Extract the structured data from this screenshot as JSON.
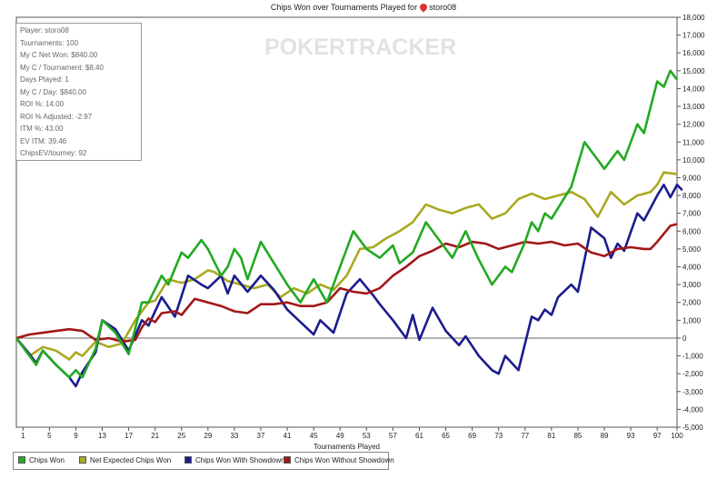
{
  "chart_data": {
    "type": "line",
    "title": "Chips Won over Tournaments Played for",
    "player_name": "storo08",
    "watermark": "POKERTRACKER",
    "xlabel": "Tournaments Played",
    "ylabel": "",
    "xlim": [
      0,
      100
    ],
    "ylim": [
      -5000,
      18000
    ],
    "x_ticks": [
      1,
      5,
      9,
      13,
      17,
      21,
      25,
      29,
      33,
      37,
      41,
      45,
      49,
      53,
      57,
      61,
      65,
      69,
      73,
      77,
      81,
      85,
      89,
      93,
      97,
      100
    ],
    "y_ticks": [
      -5000,
      -4000,
      -3000,
      -2000,
      -1000,
      0,
      1000,
      2000,
      3000,
      4000,
      5000,
      6000,
      7000,
      8000,
      9000,
      10000,
      11000,
      12000,
      13000,
      14000,
      15000,
      16000,
      17000,
      18000
    ],
    "y_axis_side": "right",
    "grid": false,
    "legend_position": "bottom",
    "stats": [
      "Player: storo08",
      "Tournaments: 100",
      "My C Net Won: $840.00",
      "My C / Tournament: $8.40",
      "Days Played: 1",
      "My C / Day: $840.00",
      "ROI %: 14.00",
      "ROI % Adjusted: -2.97",
      "ITM %: 43.00",
      "EV ITM: 39.46",
      "ChipsEV/tourney: 92"
    ],
    "series": [
      {
        "name": "Chips Won",
        "color": "#22aa22",
        "points": [
          [
            0,
            0
          ],
          [
            2,
            -1000
          ],
          [
            3,
            -1500
          ],
          [
            4,
            -700
          ],
          [
            6,
            -1500
          ],
          [
            8,
            -2200
          ],
          [
            9,
            -1800
          ],
          [
            10,
            -2200
          ],
          [
            12,
            -600
          ],
          [
            13,
            1000
          ],
          [
            15,
            300
          ],
          [
            17,
            -900
          ],
          [
            19,
            2000
          ],
          [
            20,
            2000
          ],
          [
            22,
            3500
          ],
          [
            23,
            3000
          ],
          [
            25,
            4800
          ],
          [
            26,
            4500
          ],
          [
            28,
            5500
          ],
          [
            29,
            5000
          ],
          [
            31,
            3500
          ],
          [
            32,
            4000
          ],
          [
            33,
            5000
          ],
          [
            34,
            4500
          ],
          [
            35,
            3300
          ],
          [
            37,
            5400
          ],
          [
            39,
            4200
          ],
          [
            41,
            3000
          ],
          [
            43,
            2000
          ],
          [
            45,
            3300
          ],
          [
            47,
            2000
          ],
          [
            49,
            4000
          ],
          [
            51,
            6000
          ],
          [
            53,
            5000
          ],
          [
            55,
            4500
          ],
          [
            57,
            5200
          ],
          [
            58,
            4200
          ],
          [
            60,
            4800
          ],
          [
            62,
            6500
          ],
          [
            64,
            5500
          ],
          [
            66,
            4500
          ],
          [
            68,
            6000
          ],
          [
            70,
            4400
          ],
          [
            72,
            3000
          ],
          [
            74,
            4000
          ],
          [
            75,
            3700
          ],
          [
            77,
            5400
          ],
          [
            78,
            6500
          ],
          [
            79,
            6000
          ],
          [
            80,
            7000
          ],
          [
            81,
            6700
          ],
          [
            84,
            8500
          ],
          [
            86,
            11000
          ],
          [
            88,
            10000
          ],
          [
            89,
            9500
          ],
          [
            91,
            10500
          ],
          [
            92,
            10000
          ],
          [
            94,
            12000
          ],
          [
            95,
            11500
          ],
          [
            97,
            14400
          ],
          [
            98,
            14100
          ],
          [
            99,
            15000
          ],
          [
            100,
            14500
          ]
        ]
      },
      {
        "name": "Net Expected Chips Won",
        "color": "#a9a922",
        "points": [
          [
            0,
            0
          ],
          [
            2,
            -1000
          ],
          [
            4,
            -500
          ],
          [
            6,
            -700
          ],
          [
            8,
            -1200
          ],
          [
            9,
            -800
          ],
          [
            10,
            -1000
          ],
          [
            12,
            -200
          ],
          [
            14,
            -500
          ],
          [
            16,
            -300
          ],
          [
            18,
            1000
          ],
          [
            20,
            2000
          ],
          [
            21,
            2100
          ],
          [
            23,
            3300
          ],
          [
            25,
            3100
          ],
          [
            27,
            3300
          ],
          [
            29,
            3800
          ],
          [
            30,
            3700
          ],
          [
            32,
            3200
          ],
          [
            34,
            3000
          ],
          [
            36,
            2800
          ],
          [
            38,
            3000
          ],
          [
            40,
            2300
          ],
          [
            42,
            2800
          ],
          [
            44,
            2500
          ],
          [
            46,
            3000
          ],
          [
            48,
            2700
          ],
          [
            50,
            3500
          ],
          [
            52,
            5000
          ],
          [
            54,
            5100
          ],
          [
            56,
            5600
          ],
          [
            58,
            6000
          ],
          [
            60,
            6500
          ],
          [
            62,
            7500
          ],
          [
            64,
            7200
          ],
          [
            66,
            7000
          ],
          [
            68,
            7300
          ],
          [
            70,
            7500
          ],
          [
            72,
            6700
          ],
          [
            74,
            7000
          ],
          [
            76,
            7800
          ],
          [
            78,
            8100
          ],
          [
            80,
            7800
          ],
          [
            82,
            8000
          ],
          [
            84,
            8200
          ],
          [
            86,
            7800
          ],
          [
            88,
            6800
          ],
          [
            90,
            8200
          ],
          [
            92,
            7500
          ],
          [
            94,
            8000
          ],
          [
            96,
            8200
          ],
          [
            97,
            8600
          ],
          [
            98,
            9300
          ],
          [
            100,
            9200
          ]
        ]
      },
      {
        "name": "Chips Won With Showdown",
        "color": "#1c1c8e",
        "points": [
          [
            0,
            0
          ],
          [
            2,
            -900
          ],
          [
            3,
            -1400
          ],
          [
            4,
            -700
          ],
          [
            6,
            -1500
          ],
          [
            8,
            -2200
          ],
          [
            9,
            -2700
          ],
          [
            10,
            -1900
          ],
          [
            12,
            -800
          ],
          [
            13,
            1000
          ],
          [
            15,
            500
          ],
          [
            17,
            -700
          ],
          [
            19,
            1000
          ],
          [
            20,
            700
          ],
          [
            22,
            2300
          ],
          [
            24,
            1200
          ],
          [
            26,
            3500
          ],
          [
            28,
            3000
          ],
          [
            29,
            2800
          ],
          [
            31,
            3500
          ],
          [
            32,
            2500
          ],
          [
            33,
            3500
          ],
          [
            35,
            2600
          ],
          [
            37,
            3500
          ],
          [
            39,
            2700
          ],
          [
            41,
            1600
          ],
          [
            43,
            900
          ],
          [
            45,
            200
          ],
          [
            46,
            1000
          ],
          [
            48,
            300
          ],
          [
            50,
            2500
          ],
          [
            52,
            3300
          ],
          [
            54,
            2400
          ],
          [
            55,
            1900
          ],
          [
            57,
            1000
          ],
          [
            59,
            0
          ],
          [
            60,
            1300
          ],
          [
            61,
            -100
          ],
          [
            63,
            1700
          ],
          [
            65,
            400
          ],
          [
            67,
            -400
          ],
          [
            68,
            100
          ],
          [
            70,
            -1000
          ],
          [
            72,
            -1800
          ],
          [
            73,
            -2000
          ],
          [
            74,
            -1000
          ],
          [
            76,
            -1800
          ],
          [
            78,
            1200
          ],
          [
            79,
            1000
          ],
          [
            80,
            1600
          ],
          [
            81,
            1300
          ],
          [
            82,
            2300
          ],
          [
            84,
            3000
          ],
          [
            85,
            2600
          ],
          [
            87,
            6200
          ],
          [
            89,
            5600
          ],
          [
            90,
            4500
          ],
          [
            91,
            5300
          ],
          [
            92,
            4900
          ],
          [
            94,
            7000
          ],
          [
            95,
            6600
          ],
          [
            97,
            8000
          ],
          [
            98,
            8600
          ],
          [
            99,
            7900
          ],
          [
            100,
            8600
          ],
          [
            101,
            8300
          ]
        ]
      },
      {
        "name": "Chips Won Without Showdown",
        "color": "#a21818",
        "points": [
          [
            0,
            0
          ],
          [
            2,
            200
          ],
          [
            4,
            300
          ],
          [
            6,
            400
          ],
          [
            8,
            500
          ],
          [
            10,
            400
          ],
          [
            12,
            -100
          ],
          [
            14,
            0
          ],
          [
            16,
            -200
          ],
          [
            18,
            -100
          ],
          [
            19,
            600
          ],
          [
            20,
            1100
          ],
          [
            21,
            900
          ],
          [
            22,
            1400
          ],
          [
            24,
            1500
          ],
          [
            25,
            1300
          ],
          [
            27,
            2200
          ],
          [
            29,
            2000
          ],
          [
            31,
            1800
          ],
          [
            33,
            1500
          ],
          [
            35,
            1400
          ],
          [
            37,
            1900
          ],
          [
            39,
            1900
          ],
          [
            41,
            2000
          ],
          [
            43,
            1800
          ],
          [
            45,
            1800
          ],
          [
            47,
            2000
          ],
          [
            49,
            2800
          ],
          [
            51,
            2600
          ],
          [
            53,
            2500
          ],
          [
            55,
            2800
          ],
          [
            57,
            3500
          ],
          [
            59,
            4000
          ],
          [
            61,
            4600
          ],
          [
            63,
            4900
          ],
          [
            65,
            5300
          ],
          [
            67,
            5100
          ],
          [
            69,
            5400
          ],
          [
            71,
            5300
          ],
          [
            73,
            5000
          ],
          [
            75,
            5200
          ],
          [
            77,
            5400
          ],
          [
            79,
            5300
          ],
          [
            81,
            5400
          ],
          [
            83,
            5200
          ],
          [
            85,
            5300
          ],
          [
            87,
            4800
          ],
          [
            89,
            4600
          ],
          [
            91,
            5000
          ],
          [
            93,
            5100
          ],
          [
            95,
            5000
          ],
          [
            96,
            5000
          ],
          [
            97,
            5400
          ],
          [
            99,
            6300
          ],
          [
            100,
            6400
          ]
        ]
      }
    ]
  }
}
